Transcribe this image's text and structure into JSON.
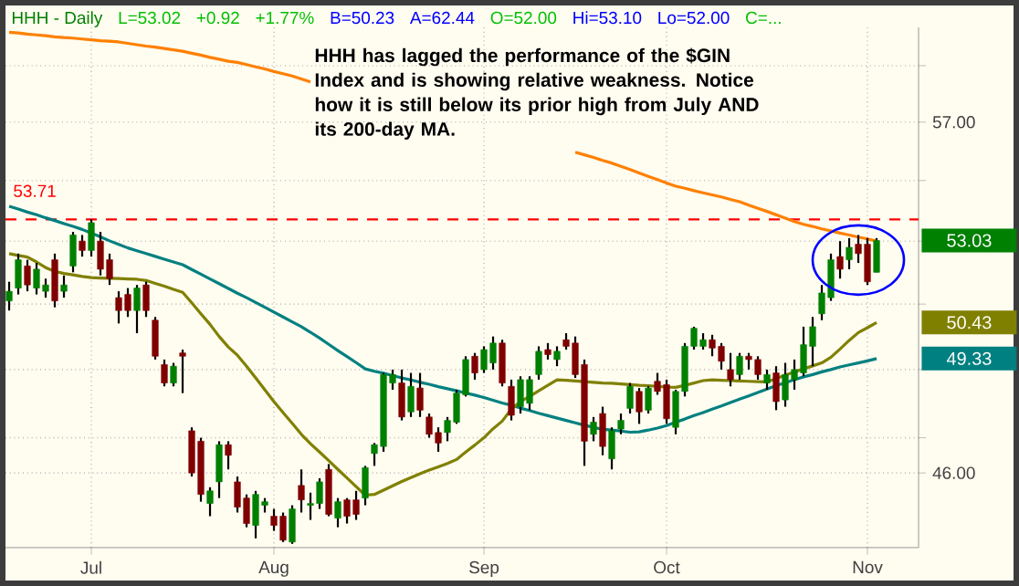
{
  "chart_data": {
    "type": "candlestick",
    "title": "HHH - Daily",
    "categories": [
      null,
      null,
      null,
      null,
      null,
      null,
      null,
      null,
      null,
      "Jul",
      null,
      null,
      null,
      null,
      null,
      null,
      null,
      null,
      null,
      null,
      null,
      null,
      null,
      null,
      null,
      null,
      null,
      null,
      null,
      "Aug",
      null,
      null,
      null,
      null,
      null,
      null,
      null,
      null,
      null,
      null,
      null,
      null,
      null,
      null,
      null,
      null,
      null,
      null,
      null,
      null,
      null,
      null,
      "Sep",
      null,
      null,
      null,
      null,
      null,
      null,
      null,
      null,
      null,
      null,
      null,
      null,
      null,
      null,
      null,
      null,
      null,
      null,
      null,
      "Oct",
      null,
      null,
      null,
      null,
      null,
      null,
      null,
      null,
      null,
      null,
      null,
      null,
      null,
      null,
      null,
      null,
      null,
      null,
      null,
      null,
      null,
      "Nov",
      null
    ],
    "ohlc": [
      [
        51.1,
        51.7,
        50.8,
        51.4
      ],
      [
        51.5,
        52.6,
        51.3,
        52.4
      ],
      [
        52.2,
        52.4,
        51.4,
        51.6
      ],
      [
        51.5,
        52.3,
        51.3,
        52.1
      ],
      [
        51.4,
        51.8,
        51.2,
        51.6
      ],
      [
        52.4,
        52.6,
        50.9,
        51.1
      ],
      [
        51.4,
        51.9,
        51.2,
        51.6
      ],
      [
        52.2,
        53.3,
        52.0,
        53.2
      ],
      [
        53.0,
        53.2,
        52.5,
        52.7
      ],
      [
        52.7,
        53.71,
        52.5,
        53.6
      ],
      [
        53.0,
        53.3,
        51.9,
        52.1
      ],
      [
        52.4,
        52.6,
        51.6,
        51.8
      ],
      [
        51.2,
        51.4,
        50.4,
        50.8
      ],
      [
        51.3,
        51.5,
        50.6,
        50.8
      ],
      [
        50.8,
        51.6,
        50.1,
        51.5
      ],
      [
        51.6,
        51.7,
        50.6,
        50.8
      ],
      [
        50.5,
        50.6,
        49.3,
        49.4
      ],
      [
        49.15,
        49.3,
        48.5,
        48.6
      ],
      [
        48.6,
        49.2,
        48.5,
        49.1
      ],
      [
        49.5,
        49.6,
        48.3,
        49.4
      ],
      [
        47.2,
        47.3,
        45.9,
        46.0
      ],
      [
        46.9,
        47.0,
        45.2,
        45.4
      ],
      [
        45.15,
        45.6,
        44.8,
        45.5
      ],
      [
        45.75,
        46.9,
        45.3,
        46.8
      ],
      [
        46.8,
        46.9,
        46.1,
        46.5
      ],
      [
        45.75,
        45.9,
        44.9,
        45.05
      ],
      [
        45.3,
        45.4,
        44.5,
        44.6
      ],
      [
        44.55,
        45.5,
        44.2,
        45.4
      ],
      [
        45.1,
        45.3,
        44.9,
        45.2
      ],
      [
        44.8,
        45.0,
        44.4,
        44.55
      ],
      [
        44.8,
        44.9,
        44.1,
        44.15
      ],
      [
        44.1,
        45.1,
        44.05,
        45.0
      ],
      [
        45.65,
        46.1,
        44.9,
        45.25
      ],
      [
        45.1,
        45.45,
        44.7,
        45.15
      ],
      [
        45.15,
        45.85,
        45.0,
        45.75
      ],
      [
        46.1,
        46.25,
        44.8,
        44.85
      ],
      [
        44.75,
        45.3,
        44.5,
        45.2
      ],
      [
        45.25,
        45.3,
        44.6,
        44.8
      ],
      [
        45.25,
        45.5,
        44.7,
        44.85
      ],
      [
        45.3,
        46.2,
        45.1,
        46.15
      ],
      [
        46.55,
        46.85,
        46.2,
        46.8
      ],
      [
        46.75,
        48.9,
        46.6,
        48.85
      ],
      [
        48.6,
        49.0,
        48.4,
        48.85
      ],
      [
        48.6,
        49.0,
        47.5,
        47.6
      ],
      [
        47.75,
        48.9,
        47.6,
        48.5
      ],
      [
        48.45,
        48.9,
        47.6,
        47.8
      ],
      [
        47.6,
        47.7,
        47.0,
        47.1
      ],
      [
        47.15,
        47.3,
        46.6,
        46.85
      ],
      [
        47.15,
        47.6,
        46.9,
        47.5
      ],
      [
        47.45,
        48.4,
        47.4,
        48.3
      ],
      [
        48.25,
        49.4,
        48.2,
        49.3
      ],
      [
        49.4,
        49.5,
        48.7,
        48.9
      ],
      [
        49.0,
        49.7,
        48.9,
        49.6
      ],
      [
        49.2,
        50.0,
        49.0,
        49.8
      ],
      [
        49.8,
        49.9,
        48.5,
        48.6
      ],
      [
        48.5,
        48.7,
        47.5,
        47.65
      ],
      [
        47.9,
        48.8,
        47.7,
        48.7
      ],
      [
        48.0,
        48.8,
        47.8,
        48.7
      ],
      [
        48.85,
        49.7,
        48.7,
        49.55
      ],
      [
        49.6,
        49.8,
        49.3,
        49.45
      ],
      [
        49.3,
        49.7,
        49.1,
        49.55
      ],
      [
        49.9,
        50.1,
        49.6,
        49.7
      ],
      [
        49.8,
        50.0,
        48.75,
        48.85
      ],
      [
        49.15,
        49.3,
        46.2,
        46.9
      ],
      [
        47.1,
        47.6,
        46.9,
        47.45
      ],
      [
        47.7,
        47.9,
        46.5,
        46.75
      ],
      [
        46.4,
        47.3,
        46.1,
        47.2
      ],
      [
        47.25,
        47.7,
        47.1,
        47.5
      ],
      [
        47.85,
        48.6,
        47.7,
        48.5
      ],
      [
        48.35,
        48.45,
        47.4,
        47.75
      ],
      [
        47.8,
        48.5,
        47.7,
        48.45
      ],
      [
        48.65,
        48.9,
        48.25,
        48.35
      ],
      [
        48.55,
        48.7,
        47.4,
        47.55
      ],
      [
        47.3,
        48.4,
        47.1,
        48.35
      ],
      [
        48.35,
        49.8,
        48.2,
        49.7
      ],
      [
        49.7,
        50.3,
        49.6,
        50.25
      ],
      [
        49.7,
        50.1,
        49.6,
        49.9
      ],
      [
        49.9,
        50.05,
        49.4,
        49.65
      ],
      [
        49.7,
        49.8,
        49.0,
        49.25
      ],
      [
        49.0,
        49.5,
        48.5,
        48.7
      ],
      [
        48.85,
        49.5,
        48.7,
        49.4
      ],
      [
        49.4,
        49.5,
        49.0,
        49.3
      ],
      [
        49.3,
        49.4,
        48.7,
        48.85
      ],
      [
        48.6,
        49.0,
        48.4,
        48.85
      ],
      [
        48.9,
        49.1,
        47.8,
        48.05
      ],
      [
        48.1,
        49.2,
        47.9,
        48.85
      ],
      [
        48.7,
        49.3,
        48.4,
        49.0
      ],
      [
        48.9,
        50.3,
        48.8,
        49.75
      ],
      [
        49.7,
        50.6,
        49.1,
        50.3
      ],
      [
        50.7,
        51.6,
        50.5,
        51.35
      ],
      [
        51.2,
        52.6,
        51.1,
        52.4
      ],
      [
        52.5,
        53.0,
        51.8,
        52.1
      ],
      [
        52.4,
        53.1,
        52.1,
        52.8
      ],
      [
        52.9,
        53.2,
        52.3,
        52.6
      ],
      [
        52.9,
        53.1,
        51.6,
        51.7
      ],
      [
        52.0,
        53.1,
        52.0,
        53.02
      ]
    ],
    "series": [
      {
        "type": "line",
        "color": "#ff8000",
        "values": [
          60.22,
          60.19,
          60.15,
          60.12,
          60.09,
          60.05,
          60.02,
          60.0,
          59.97,
          59.94,
          59.91,
          59.89,
          59.86,
          59.81,
          59.76,
          59.71,
          59.67,
          59.62,
          59.57,
          59.52,
          59.45,
          59.38,
          59.3,
          59.23,
          59.16,
          59.12,
          59.04,
          58.96,
          58.88,
          58.79,
          58.71,
          58.63,
          58.52,
          58.42,
          null,
          null,
          null,
          null,
          null,
          null,
          null,
          null,
          null,
          null,
          null,
          null,
          null,
          null,
          null,
          null,
          null,
          null,
          null,
          null,
          null,
          null,
          null,
          null,
          null,
          null,
          null,
          null,
          55.96,
          55.87,
          55.78,
          55.68,
          55.59,
          55.48,
          55.37,
          55.25,
          55.14,
          55.03,
          54.92,
          54.81,
          54.74,
          54.66,
          54.59,
          54.52,
          54.45,
          54.37,
          54.29,
          54.18,
          54.07,
          53.97,
          53.86,
          53.75,
          53.64,
          53.55,
          53.48,
          53.4,
          53.33,
          53.26,
          53.2,
          53.13,
          53.07,
          53.0
        ]
      },
      {
        "type": "line",
        "color": "#008080",
        "values": [
          54.14,
          54.05,
          53.95,
          53.86,
          53.76,
          53.67,
          53.57,
          53.48,
          53.38,
          53.26,
          53.14,
          53.01,
          52.89,
          52.78,
          52.69,
          52.6,
          52.51,
          52.42,
          52.33,
          52.24,
          52.09,
          51.94,
          51.79,
          51.64,
          51.49,
          51.34,
          51.2,
          51.05,
          50.9,
          50.75,
          50.6,
          50.45,
          50.3,
          50.13,
          49.95,
          49.76,
          49.57,
          49.39,
          49.21,
          49.02,
          48.95,
          48.89,
          48.82,
          48.75,
          48.69,
          48.62,
          48.56,
          48.49,
          48.43,
          48.37,
          48.3,
          48.24,
          48.17,
          48.09,
          48.01,
          47.94,
          47.86,
          47.79,
          47.71,
          47.64,
          47.57,
          47.5,
          47.43,
          47.36,
          47.3,
          47.24,
          47.22,
          47.19,
          47.16,
          47.17,
          47.22,
          47.28,
          47.35,
          47.45,
          47.54,
          47.64,
          47.73,
          47.83,
          47.92,
          48.02,
          48.12,
          48.22,
          48.32,
          48.42,
          48.52,
          48.61,
          48.7,
          48.78,
          48.85,
          48.93,
          49.0,
          49.08,
          49.14,
          49.2,
          49.26,
          49.33
        ]
      },
      {
        "type": "line",
        "color": "#808000",
        "values": [
          52.6,
          52.54,
          52.49,
          52.33,
          52.15,
          52.03,
          51.96,
          51.92,
          51.87,
          51.83,
          51.82,
          51.81,
          51.8,
          51.79,
          51.78,
          51.74,
          51.65,
          51.56,
          51.46,
          51.37,
          51.04,
          50.7,
          50.37,
          50.0,
          49.68,
          49.43,
          49.1,
          48.75,
          48.4,
          48.05,
          47.73,
          47.42,
          47.1,
          46.83,
          46.59,
          46.35,
          46.1,
          45.86,
          45.62,
          45.38,
          45.4,
          45.52,
          45.64,
          45.76,
          45.87,
          45.98,
          46.08,
          46.17,
          46.27,
          46.38,
          46.59,
          46.79,
          47.0,
          47.26,
          47.48,
          47.83,
          48.05,
          48.2,
          48.37,
          48.53,
          48.69,
          48.68,
          48.66,
          48.64,
          48.62,
          48.6,
          48.59,
          48.57,
          48.55,
          48.53,
          48.52,
          48.5,
          48.48,
          48.47,
          48.53,
          48.6,
          48.67,
          48.69,
          48.68,
          48.67,
          48.66,
          48.65,
          48.64,
          48.63,
          48.73,
          48.83,
          48.93,
          49.02,
          49.11,
          49.2,
          49.37,
          49.62,
          49.88,
          50.12,
          50.27,
          50.43
        ]
      }
    ],
    "ylim": [
      43.95,
      60.4
    ],
    "log": "y",
    "yticks": [
      {
        "value": 59,
        "label": null
      },
      {
        "value": 57,
        "label": "57.00"
      },
      {
        "value": 55,
        "label": null
      },
      {
        "value": 53,
        "label": null
      },
      {
        "value": 51,
        "label": null
      },
      {
        "value": 49,
        "label": null
      },
      {
        "value": 47,
        "label": null
      },
      {
        "value": 46,
        "label": "46.00"
      }
    ],
    "grid": true,
    "ref_lines": [
      {
        "axis": "y",
        "value": 53.71,
        "label": "53.71",
        "color": "#ff0000",
        "line_style": "dashed"
      }
    ],
    "annotations": [
      "HHH has lagged the performance of the $GIN Index and is showing relative weakness.  Notice how it is still below its prior high from July AND its 200-day MA.",
      "53.03",
      "50.43",
      "49.33",
      "L=53.02",
      "+0.92",
      "+1.77%",
      "B=50.23",
      "A=62.44",
      "O=52.00",
      "Hi=53.10",
      "Lo=52.00",
      "C=..."
    ]
  }
}
